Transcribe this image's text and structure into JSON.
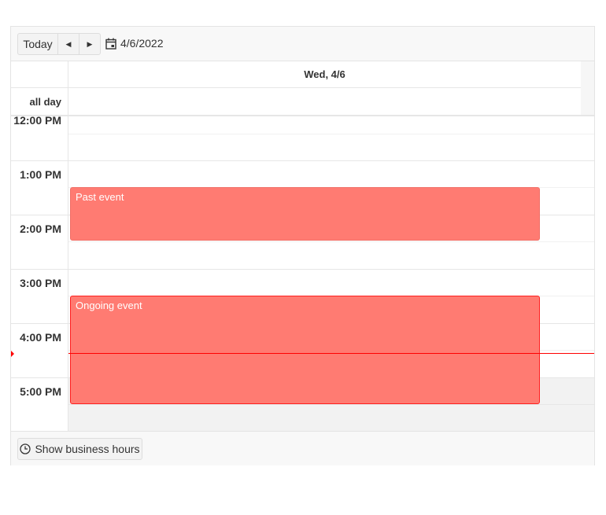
{
  "toolbar": {
    "today_label": "Today",
    "prev_icon": "triangle-left-icon",
    "next_icon": "triangle-right-icon",
    "calendar_icon": "calendar-icon",
    "date": "4/6/2022"
  },
  "header": {
    "day": "Wed, 4/6",
    "all_day_label": "all day"
  },
  "times": [
    "12:00 PM",
    "1:00 PM",
    "2:00 PM",
    "3:00 PM",
    "4:00 PM",
    "5:00 PM"
  ],
  "events": [
    {
      "title": "Past event"
    },
    {
      "title": "Ongoing event"
    }
  ],
  "colors": {
    "event": "#ff7b72",
    "now_indicator": "#ff0000"
  },
  "footer": {
    "business_hours_label": "Show business hours",
    "clock_icon": "clock-icon"
  }
}
